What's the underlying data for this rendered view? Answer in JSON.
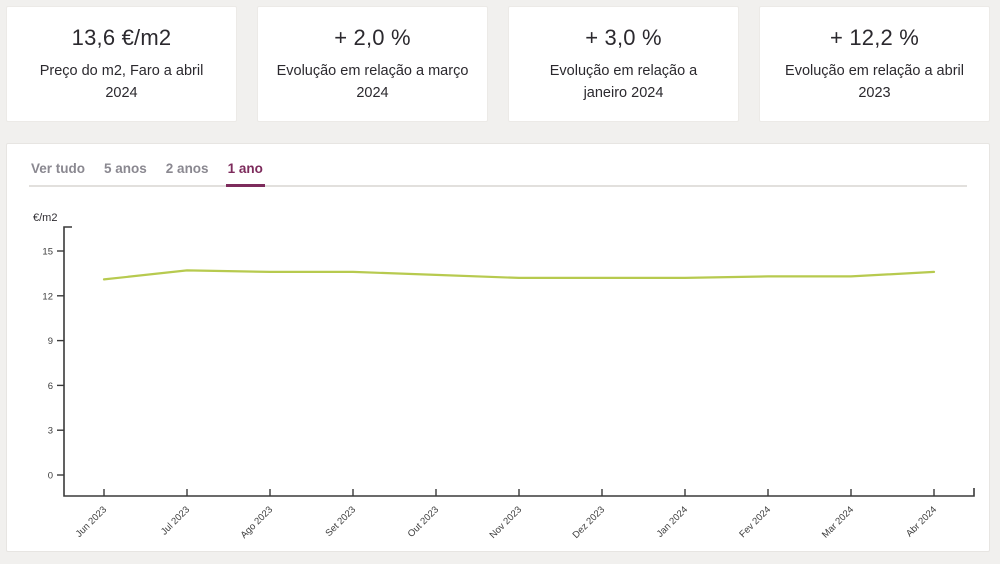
{
  "cards": [
    {
      "value": "13,6 €/m2",
      "label": "Preço do m2, Faro a abril 2024"
    },
    {
      "value": "+ 2,0 %",
      "label": "Evolução em relação a março 2024"
    },
    {
      "value": "+ 3,0 %",
      "label": "Evolução em relação a janeiro 2024"
    },
    {
      "value": "+ 12,2 %",
      "label": "Evolução em relação a abril 2023"
    }
  ],
  "tabs": {
    "items": [
      {
        "label": "Ver tudo",
        "active": false
      },
      {
        "label": "5 anos",
        "active": false
      },
      {
        "label": "2 anos",
        "active": false
      },
      {
        "label": "1 ano",
        "active": true
      }
    ]
  },
  "chart_data": {
    "type": "line",
    "x": [
      "Jun 2023",
      "Jul 2023",
      "Ago 2023",
      "Set 2023",
      "Out 2023",
      "Nov 2023",
      "Dez 2023",
      "Jan 2024",
      "Fev 2024",
      "Mar 2024",
      "Abr 2024"
    ],
    "values": [
      13.1,
      13.7,
      13.6,
      13.6,
      13.4,
      13.2,
      13.2,
      13.2,
      13.3,
      13.3,
      13.6
    ],
    "title": "",
    "xlabel": "",
    "ylabel": "€/m2",
    "yticks": [
      0,
      3,
      6,
      9,
      12,
      15
    ],
    "ylim": [
      0,
      15
    ],
    "grid": false,
    "legend_position": "none",
    "line_color": "#b7ca4f",
    "axis_color": "#3a3a3a"
  },
  "colors": {
    "page_background": "#f1f0ee",
    "card_background": "#ffffff",
    "tab_active": "#7d2b5c",
    "tab_inactive": "#8a8890"
  }
}
